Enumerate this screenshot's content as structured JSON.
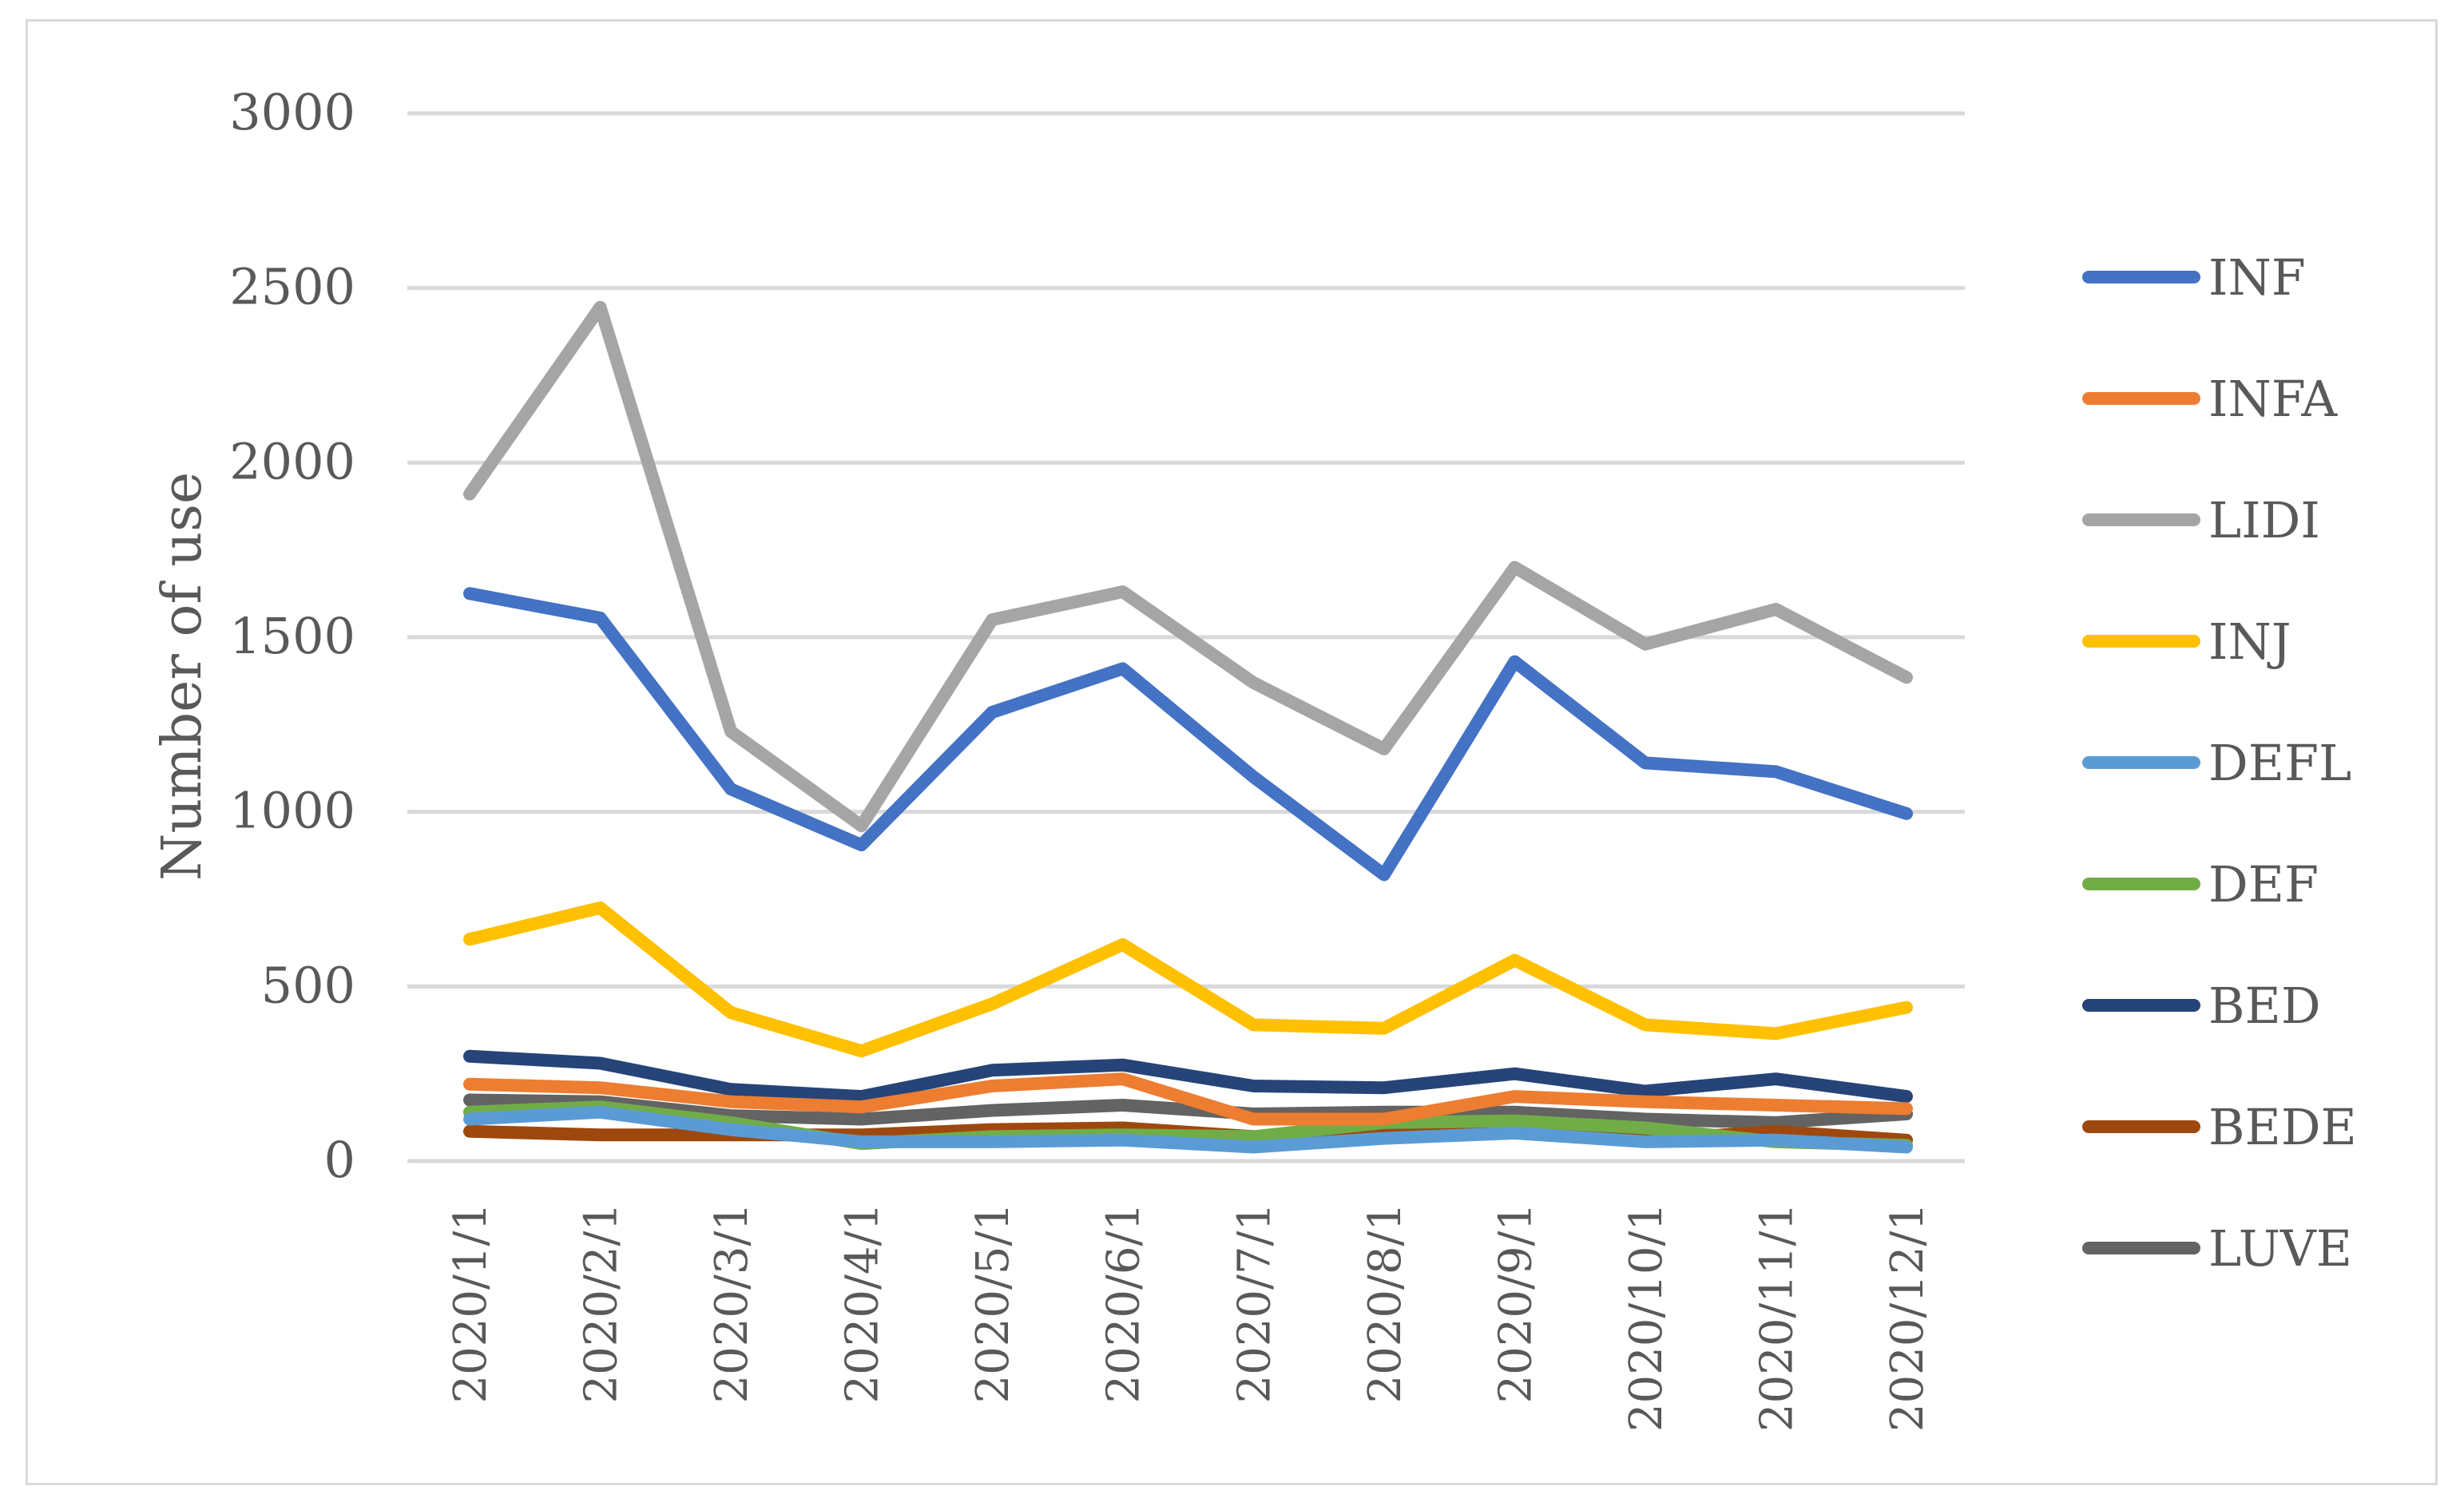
{
  "chart_data": {
    "type": "line",
    "title": "",
    "xlabel": "",
    "ylabel": "Number of use",
    "ylim": [
      0,
      3000
    ],
    "yticks": [
      0,
      500,
      1000,
      1500,
      2000,
      2500,
      3000
    ],
    "grid": true,
    "legend_position": "right",
    "categories": [
      "2020/1/1",
      "2020/2/1",
      "2020/3/1",
      "2020/4/1",
      "2020/5/1",
      "2020/6/1",
      "2020/7/1",
      "2020/8/1",
      "2020/9/1",
      "2020/10/1",
      "2020/11/1",
      "2020/12/1"
    ],
    "series": [
      {
        "name": "INF",
        "color": "#4472c4",
        "values": [
          1625,
          1555,
          1065,
          905,
          1285,
          1410,
          1100,
          820,
          1430,
          1140,
          1115,
          995
        ]
      },
      {
        "name": "INFA",
        "color": "#ed7d31",
        "values": [
          220,
          210,
          170,
          155,
          215,
          235,
          120,
          120,
          185,
          170,
          160,
          150
        ]
      },
      {
        "name": "LIDI",
        "color": "#a5a5a5",
        "values": [
          1910,
          2445,
          1230,
          960,
          1550,
          1630,
          1370,
          1180,
          1700,
          1480,
          1580,
          1385
        ]
      },
      {
        "name": "INJ",
        "color": "#ffc000",
        "values": [
          635,
          725,
          425,
          315,
          450,
          620,
          390,
          380,
          575,
          390,
          365,
          440
        ]
      },
      {
        "name": "DEFL",
        "color": "#5b9bd5",
        "values": [
          120,
          140,
          90,
          55,
          55,
          60,
          40,
          65,
          80,
          55,
          60,
          40
        ]
      },
      {
        "name": "DEF",
        "color": "#70ad47",
        "values": [
          140,
          155,
          110,
          50,
          70,
          75,
          70,
          110,
          115,
          95,
          55,
          45
        ]
      },
      {
        "name": "BED",
        "color": "#264478",
        "values": [
          300,
          280,
          205,
          185,
          260,
          275,
          215,
          210,
          250,
          200,
          235,
          185
        ]
      },
      {
        "name": "BEDE",
        "color": "#9e480e",
        "values": [
          85,
          75,
          75,
          75,
          90,
          95,
          70,
          75,
          95,
          60,
          85,
          60
        ]
      },
      {
        "name": "LUVE",
        "color": "#636363",
        "values": [
          175,
          170,
          130,
          120,
          145,
          160,
          135,
          140,
          140,
          120,
          110,
          135
        ]
      }
    ]
  }
}
